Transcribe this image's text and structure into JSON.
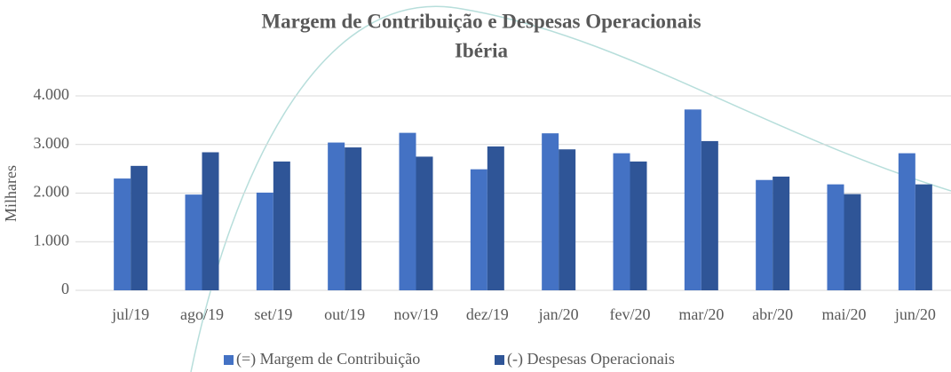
{
  "chart_data": {
    "type": "bar",
    "title": "Margem de Contribuição e Despesas Operacionais",
    "subtitle": "Ibéria",
    "y_label": "Milhares",
    "categories": [
      "jul/19",
      "ago/19",
      "set/19",
      "out/19",
      "nov/19",
      "dez/19",
      "jan/20",
      "fev/20",
      "mar/20",
      "abr/20",
      "mai/20",
      "jun/20"
    ],
    "series": [
      {
        "name": "(=) Margem de Contribuição",
        "color": "#4472c4",
        "values": [
          2300,
          1970,
          2010,
          3040,
          3240,
          2490,
          3230,
          2820,
          3720,
          2270,
          2180,
          2820
        ]
      },
      {
        "name": "(-) Despesas Operacionais",
        "color": "#2f5597",
        "values": [
          2560,
          2840,
          2650,
          2940,
          2750,
          2960,
          2900,
          2650,
          3070,
          2340,
          1980,
          2180
        ]
      }
    ],
    "ylim": [
      0,
      4000
    ],
    "yticks": [
      0,
      {
        "value": 1000,
        "label": "1.000"
      },
      {
        "value": 2000,
        "label": "2.000"
      },
      {
        "value": 3000,
        "label": "3.000"
      },
      {
        "value": 4000,
        "label": "4.000"
      }
    ],
    "grid": true,
    "legend": "bottom"
  }
}
